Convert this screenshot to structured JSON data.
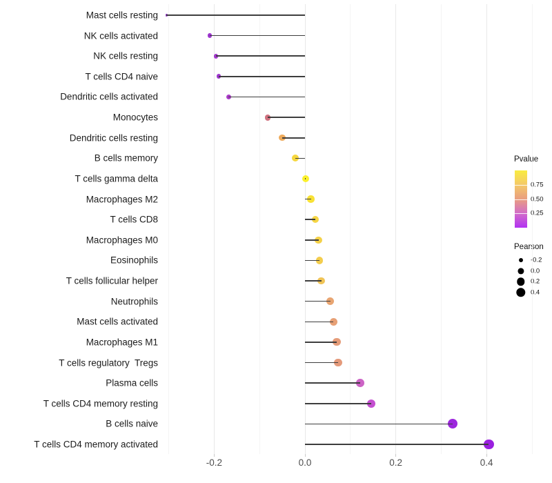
{
  "chart_data": {
    "type": "scatter",
    "subtype": "lollipop",
    "orientation": "horizontal",
    "title": "",
    "xlabel": "",
    "ylabel": "",
    "xlim": [
      -0.32,
      0.53
    ],
    "x_ticks": [
      -0.2,
      0.0,
      0.2,
      0.4
    ],
    "x_tick_labels": [
      "-0.2",
      "0.0",
      "0.2",
      "0.4"
    ],
    "x_minor_gridlines": [
      -0.3,
      -0.1,
      0.1,
      0.3,
      0.5
    ],
    "grid": "vertical major and minor gridlines only, light gray, white background",
    "categories": [
      "Mast cells resting",
      "NK cells activated",
      "NK cells resting",
      "T cells CD4 naive",
      "Dendritic cells activated",
      "Monocytes",
      "Dendritic cells resting",
      "B cells memory",
      "T cells gamma delta",
      "Macrophages M2",
      "T cells CD8",
      "Macrophages M0",
      "Eosinophils",
      "T cells follicular helper",
      "Neutrophils",
      "Mast cells activated",
      "Macrophages M1",
      "T cells regulatory  Tregs",
      "Plasma cells",
      "T cells CD4 memory resting",
      "B cells naive",
      "T cells CD4 memory activated"
    ],
    "series": [
      {
        "name": "Pearson correlation",
        "values": [
          -0.305,
          -0.21,
          -0.196,
          -0.19,
          -0.168,
          -0.082,
          -0.05,
          -0.021,
          0.002,
          0.013,
          0.023,
          0.03,
          0.032,
          0.036,
          0.056,
          0.063,
          0.07,
          0.073,
          0.122,
          0.146,
          0.325,
          0.405
        ]
      }
    ],
    "points": [
      {
        "label": "Mast cells resting",
        "pearson": -0.305,
        "pvalue_est": 0.1,
        "color": "#9632d2"
      },
      {
        "label": "NK cells activated",
        "pearson": -0.21,
        "pvalue_est": 0.13,
        "color": "#9d35cf"
      },
      {
        "label": "NK cells resting",
        "pearson": -0.196,
        "pvalue_est": 0.15,
        "color": "#a338cd"
      },
      {
        "label": "T cells CD4 naive",
        "pearson": -0.19,
        "pvalue_est": 0.14,
        "color": "#9e36ce"
      },
      {
        "label": "Dendritic cells activated",
        "pearson": -0.168,
        "pvalue_est": 0.18,
        "color": "#aa3bc9"
      },
      {
        "label": "Monocytes",
        "pearson": -0.082,
        "pvalue_est": 0.38,
        "color": "#d0717f"
      },
      {
        "label": "Dendritic cells resting",
        "pearson": -0.05,
        "pvalue_est": 0.7,
        "color": "#eeab5c"
      },
      {
        "label": "B cells memory",
        "pearson": -0.021,
        "pvalue_est": 0.88,
        "color": "#f6d73e"
      },
      {
        "label": "T cells gamma delta",
        "pearson": 0.002,
        "pvalue_est": 0.98,
        "color": "#fbf02b"
      },
      {
        "label": "Macrophages M2",
        "pearson": 0.013,
        "pvalue_est": 0.93,
        "color": "#f8e135"
      },
      {
        "label": "T cells CD8",
        "pearson": 0.023,
        "pvalue_est": 0.89,
        "color": "#f5d544"
      },
      {
        "label": "Macrophages M0",
        "pearson": 0.03,
        "pvalue_est": 0.87,
        "color": "#f4d148"
      },
      {
        "label": "Eosinophils",
        "pearson": 0.032,
        "pvalue_est": 0.85,
        "color": "#f3cd4d"
      },
      {
        "label": "T cells follicular helper",
        "pearson": 0.036,
        "pvalue_est": 0.8,
        "color": "#f0c457"
      },
      {
        "label": "Neutrophils",
        "pearson": 0.056,
        "pvalue_est": 0.55,
        "color": "#e8a572"
      },
      {
        "label": "Mast cells activated",
        "pearson": 0.063,
        "pvalue_est": 0.53,
        "color": "#e7a075"
      },
      {
        "label": "Macrophages M1",
        "pearson": 0.07,
        "pvalue_est": 0.51,
        "color": "#e59c79"
      },
      {
        "label": "T cells regulatory  Tregs",
        "pearson": 0.073,
        "pvalue_est": 0.5,
        "color": "#e49a7b"
      },
      {
        "label": "Plasma cells",
        "pearson": 0.122,
        "pvalue_est": 0.28,
        "color": "#cc63c5"
      },
      {
        "label": "T cells CD4 memory resting",
        "pearson": 0.146,
        "pvalue_est": 0.22,
        "color": "#c44fd0"
      },
      {
        "label": "B cells naive",
        "pearson": 0.325,
        "pvalue_est": 0.05,
        "color": "#9c27dd"
      },
      {
        "label": "T cells CD4 memory activated",
        "pearson": 0.405,
        "pvalue_est": 0.03,
        "color": "#9a20df"
      }
    ],
    "legend_pvalue": {
      "title": "Pvalue",
      "position": "right",
      "range": [
        0,
        1
      ],
      "tick_labels": [
        "0.75",
        "0.50",
        "0.25"
      ],
      "tick_values": [
        0.75,
        0.5,
        0.25
      ],
      "gradient_top_to_bottom": [
        "#f9ec40",
        "#f4c968",
        "#e99e80",
        "#d26cc9",
        "#b232f2"
      ]
    },
    "legend_pearson": {
      "title": "Pearson",
      "position": "right",
      "entries": [
        {
          "label": "-0.2",
          "value": -0.2
        },
        {
          "label": "0.0",
          "value": 0.0
        },
        {
          "label": "0.2",
          "value": 0.2
        },
        {
          "label": "0.4",
          "value": 0.4
        }
      ]
    },
    "style": {
      "stem_color": "#3d3d3d",
      "grid_major_color": "#e8e8e8",
      "grid_minor_color": "#f4f4f4",
      "axis_text_color": "#4d4d4d",
      "category_text_color": "#1c1c1c",
      "background": "#ffffff"
    }
  }
}
